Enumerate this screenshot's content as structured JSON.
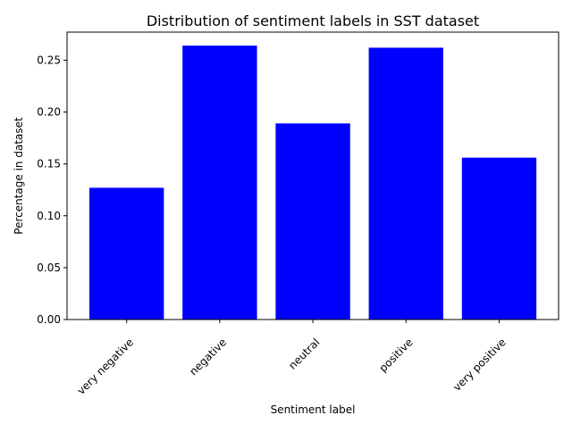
{
  "chart_data": {
    "type": "bar",
    "title": "Distribution of sentiment labels in SST dataset",
    "xlabel": "Sentiment label",
    "ylabel": "Percentage in dataset",
    "categories": [
      "very negative",
      "negative",
      "neutral",
      "positive",
      "very positive"
    ],
    "values": [
      0.127,
      0.264,
      0.189,
      0.262,
      0.156
    ],
    "ylim": [
      0,
      0.277
    ],
    "yticks": [
      0.0,
      0.05,
      0.1,
      0.15,
      0.2,
      0.25
    ],
    "ytick_labels": [
      "0.00",
      "0.05",
      "0.10",
      "0.15",
      "0.20",
      "0.25"
    ],
    "bar_color": "#0000ff",
    "grid": false,
    "legend": "none",
    "xtick_rotation": 45
  }
}
